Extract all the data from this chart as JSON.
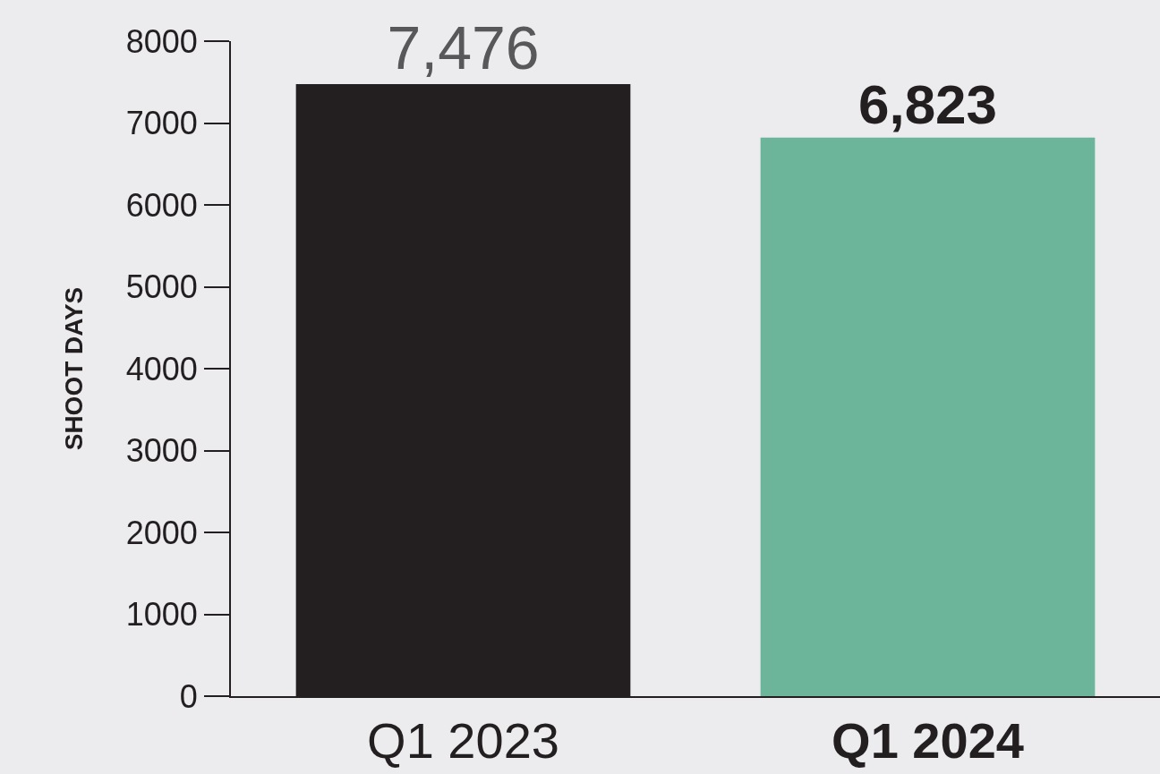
{
  "chart_data": {
    "type": "bar",
    "ylabel": "SHOOT DAYS",
    "categories": [
      "Q1 2023",
      "Q1 2024"
    ],
    "values": [
      7476,
      6823
    ],
    "colors": [
      "#231f20",
      "#6cb59a"
    ],
    "value_labels": [
      "7,476",
      "6,823"
    ],
    "ylim": [
      0,
      8000
    ],
    "yticks": [
      0,
      1000,
      2000,
      3000,
      4000,
      5000,
      6000,
      7000,
      8000
    ],
    "grid": false
  }
}
